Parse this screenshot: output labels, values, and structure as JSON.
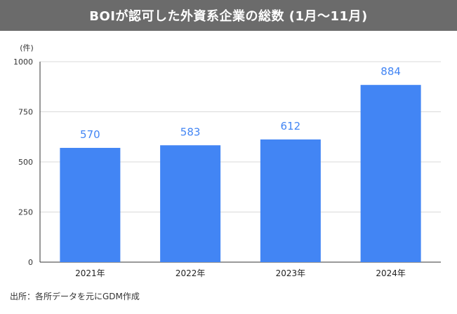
{
  "title": "BOIが認可した外資系企業の総数 (1月〜11月)",
  "source": "出所：各所データを元にGDM作成",
  "colors": {
    "bar": "#4285f4",
    "label": "#4285f4",
    "title_bg": "#6b6b6b"
  },
  "chart_data": {
    "type": "bar",
    "categories": [
      "2021年",
      "2022年",
      "2023年",
      "2024年"
    ],
    "values": [
      570,
      583,
      612,
      884
    ],
    "data_labels": [
      "570",
      "583",
      "612",
      "884"
    ],
    "yunit": "(件)",
    "ylim": [
      0,
      1000
    ],
    "yticks": [
      "0",
      "250",
      "500",
      "750",
      "1000"
    ],
    "ytick_values": [
      0,
      250,
      500,
      750,
      1000
    ],
    "grid": true
  }
}
